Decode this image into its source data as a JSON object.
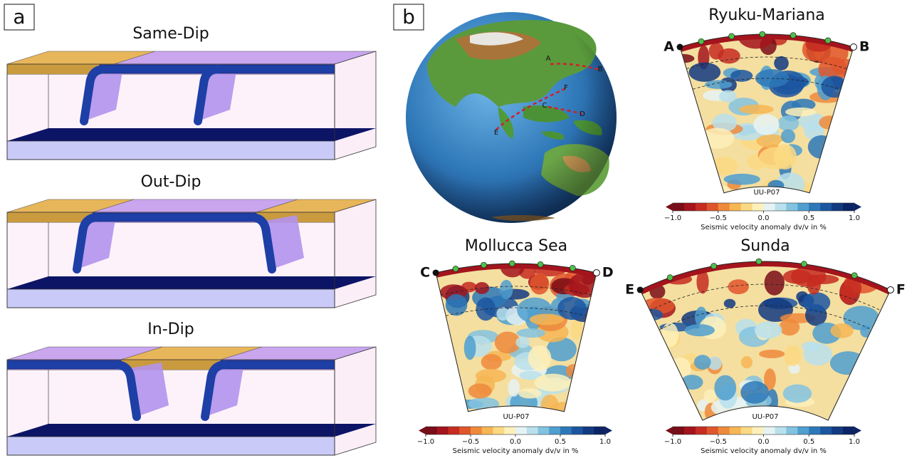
{
  "panel_a": {
    "label": "a",
    "models": [
      {
        "title": "Same-Dip"
      },
      {
        "title": "Out-Dip"
      },
      {
        "title": "In-Dip"
      }
    ]
  },
  "panel_b": {
    "label": "b",
    "map_labels": [
      "A",
      "B",
      "C",
      "D",
      "E",
      "F"
    ],
    "sections": [
      {
        "title": "Ryuku-Mariana",
        "start": "A",
        "end": "B",
        "model": "UU-P07",
        "colorbar": {
          "ticks": [
            "−1.0",
            "−0.5",
            "0.0",
            "0.5",
            "1.0"
          ],
          "label": "Seismic velocity anomaly dv/v in %"
        }
      },
      {
        "title": "Mollucca Sea",
        "start": "C",
        "end": "D",
        "model": "UU-P07",
        "colorbar": {
          "ticks": [
            "−1.0",
            "−0.5",
            "0.0",
            "0.5",
            "1.0"
          ],
          "label": "Seismic velocity anomaly dv/v in %"
        }
      },
      {
        "title": "Sunda",
        "start": "E",
        "end": "F",
        "model": "UU-P07",
        "colorbar": {
          "ticks": [
            "−1.0",
            "−0.5",
            "0.0",
            "0.5",
            "1.0"
          ],
          "label": "Seismic velocity anomaly dv/v in %"
        }
      }
    ]
  }
}
